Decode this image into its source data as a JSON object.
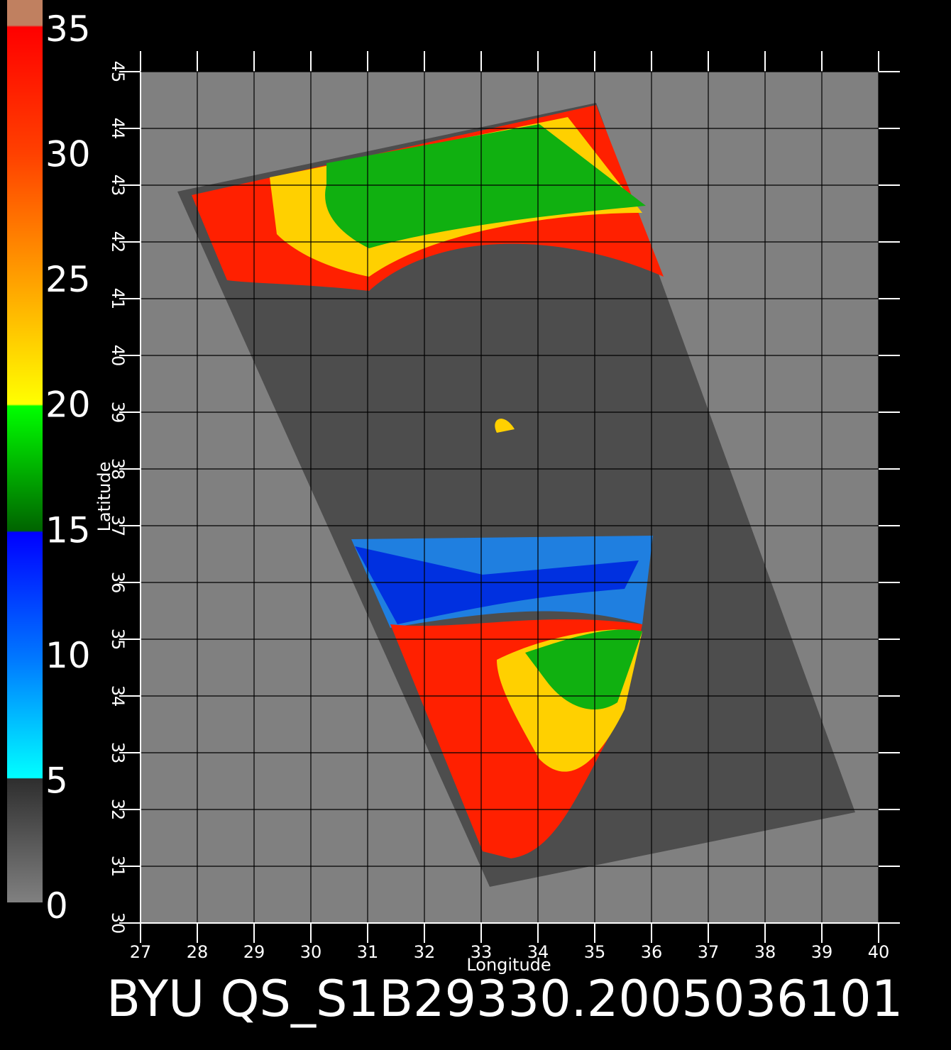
{
  "title": "BYU QS_S1B29330.2005036101",
  "colorbar": {
    "ticks": [
      0,
      5,
      10,
      15,
      20,
      25,
      30,
      35
    ],
    "lim": [
      0,
      35
    ]
  },
  "map": {
    "xlabel": "Longitude",
    "ylabel": "Latitude",
    "xlim": [
      27,
      40
    ],
    "ylim": [
      30,
      45
    ],
    "xticks": [
      27,
      28,
      29,
      30,
      31,
      32,
      33,
      34,
      35,
      36,
      37,
      38,
      39,
      40
    ],
    "yticks": [
      30,
      31,
      32,
      33,
      34,
      35,
      36,
      37,
      38,
      39,
      40,
      41,
      42,
      43,
      44,
      45
    ]
  }
}
